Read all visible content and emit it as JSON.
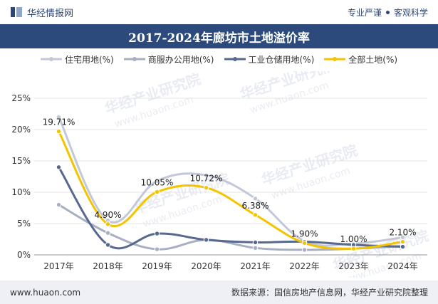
{
  "header": {
    "brand": "华经情报网",
    "slogan_left": "专业严谨",
    "slogan_right": "客观科学"
  },
  "title": "2017-2024年廊坊市土地溢价率",
  "footer": {
    "website": "www.huaon.com",
    "source": "数据来源：国信房地产信息网，华经产业研究院整理"
  },
  "watermarks": [
    "华经产业研究院",
    "www.huaon.com"
  ],
  "colors": {
    "title_bg": "#2c4a7c",
    "footer_bg": "#eef0f6",
    "grid": "#e5e5e5"
  },
  "chart_data": {
    "type": "line",
    "categories": [
      "2017年",
      "2018年",
      "2019年",
      "2020年",
      "2021年",
      "2022年",
      "2023年",
      "2024年"
    ],
    "ylim": [
      0,
      25
    ],
    "y_ticks": [
      0,
      5,
      10,
      15,
      20,
      25
    ],
    "y_tick_labels": [
      "0%",
      "5%",
      "10%",
      "15%",
      "20%",
      "25%"
    ],
    "legend_position": "top",
    "grid": "horizontal",
    "series": [
      {
        "name": "住宅用地(%)",
        "color": "#c3c8d9",
        "values": [
          22.0,
          5.5,
          11.8,
          12.7,
          9.0,
          2.2,
          1.8,
          2.8
        ],
        "show_labels": false
      },
      {
        "name": "商服办公用地(%)",
        "color": "#a7afc2",
        "values": [
          8.0,
          3.5,
          0.9,
          2.4,
          1.1,
          0.8,
          1.0,
          1.4
        ],
        "show_labels": false
      },
      {
        "name": "工业仓储用地(%)",
        "color": "#57698f",
        "values": [
          14.0,
          1.6,
          3.4,
          2.4,
          2.0,
          2.1,
          1.6,
          1.3
        ],
        "show_labels": false
      },
      {
        "name": "全部土地(%)",
        "color": "#f5c400",
        "values": [
          19.71,
          4.9,
          10.05,
          10.72,
          6.38,
          1.9,
          1.0,
          2.1
        ],
        "show_labels": true,
        "labels": [
          "19.71%",
          "4.90%",
          "10.05%",
          "10.72%",
          "6.38%",
          "1.90%",
          "1.00%",
          "2.10%"
        ]
      }
    ]
  }
}
